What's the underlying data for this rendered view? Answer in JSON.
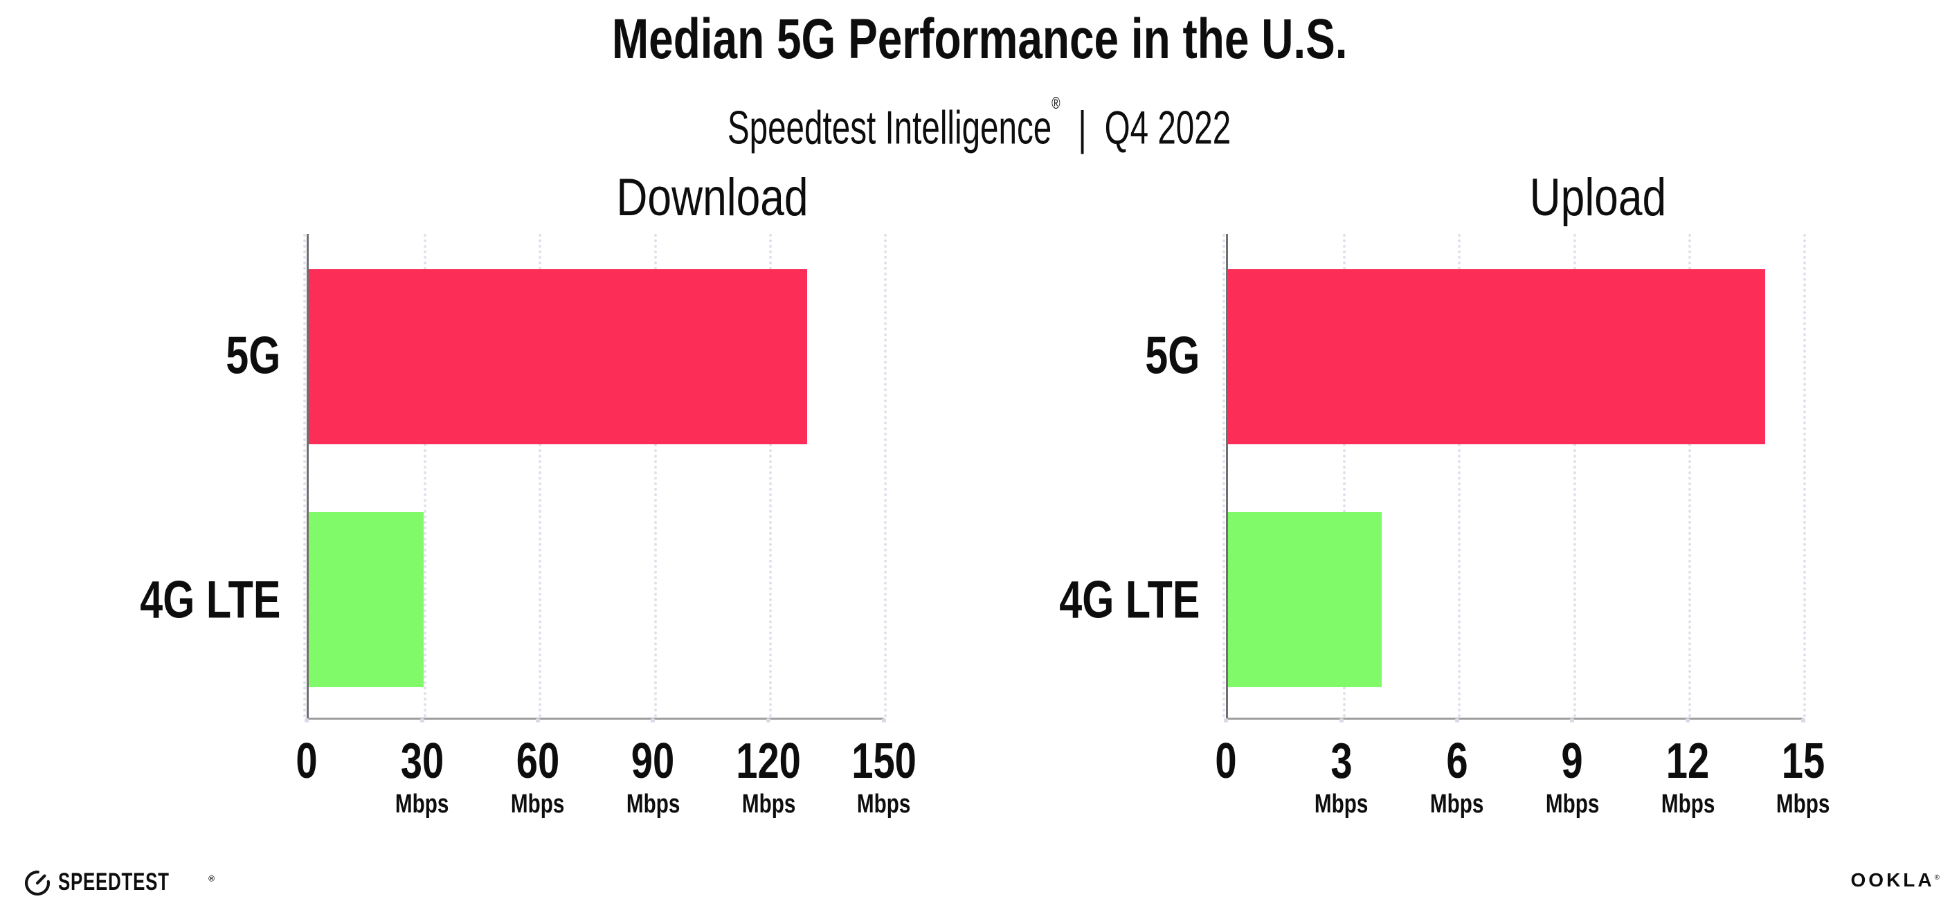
{
  "header": {
    "title": "Median 5G Performance in the U.S.",
    "subtitle": {
      "brand": "Speedtest Intelligence",
      "registered_mark": "®",
      "separator": "|",
      "period": "Q4 2022"
    }
  },
  "chart_data": [
    {
      "type": "bar",
      "orientation": "horizontal",
      "title": "Download",
      "categories": [
        "5G",
        "4G LTE"
      ],
      "values": [
        130,
        30
      ],
      "unit": "Mbps",
      "xlim": [
        0,
        150
      ],
      "xticks": [
        0,
        30,
        60,
        90,
        120,
        150
      ],
      "xtick_unit": "Mbps",
      "bar_colors": [
        "#fc2e58",
        "#80fa68"
      ],
      "grid": "vertical dotted",
      "legend": "none"
    },
    {
      "type": "bar",
      "orientation": "horizontal",
      "title": "Upload",
      "categories": [
        "5G",
        "4G LTE"
      ],
      "values": [
        14,
        4
      ],
      "unit": "Mbps",
      "xlim": [
        0,
        15
      ],
      "xticks": [
        0,
        3,
        6,
        9,
        12,
        15
      ],
      "xtick_unit": "Mbps",
      "bar_colors": [
        "#fc2e58",
        "#80fa68"
      ],
      "grid": "vertical dotted",
      "legend": "none"
    }
  ],
  "footer": {
    "speedtest": {
      "label": "SPEEDTEST",
      "registered_mark": "®"
    },
    "ookla": {
      "label": "OOKLA",
      "registered_mark": "®"
    }
  },
  "colors": {
    "bar_5g": "#fc2e58",
    "bar_4g_lte": "#80fa68",
    "axis_line_vertical": "#6f6f6f",
    "axis_line_horizontal": "#9f9f9f",
    "gridline": "#dfe0ec",
    "text": "#0d0d0d",
    "background": "#ffffff"
  }
}
